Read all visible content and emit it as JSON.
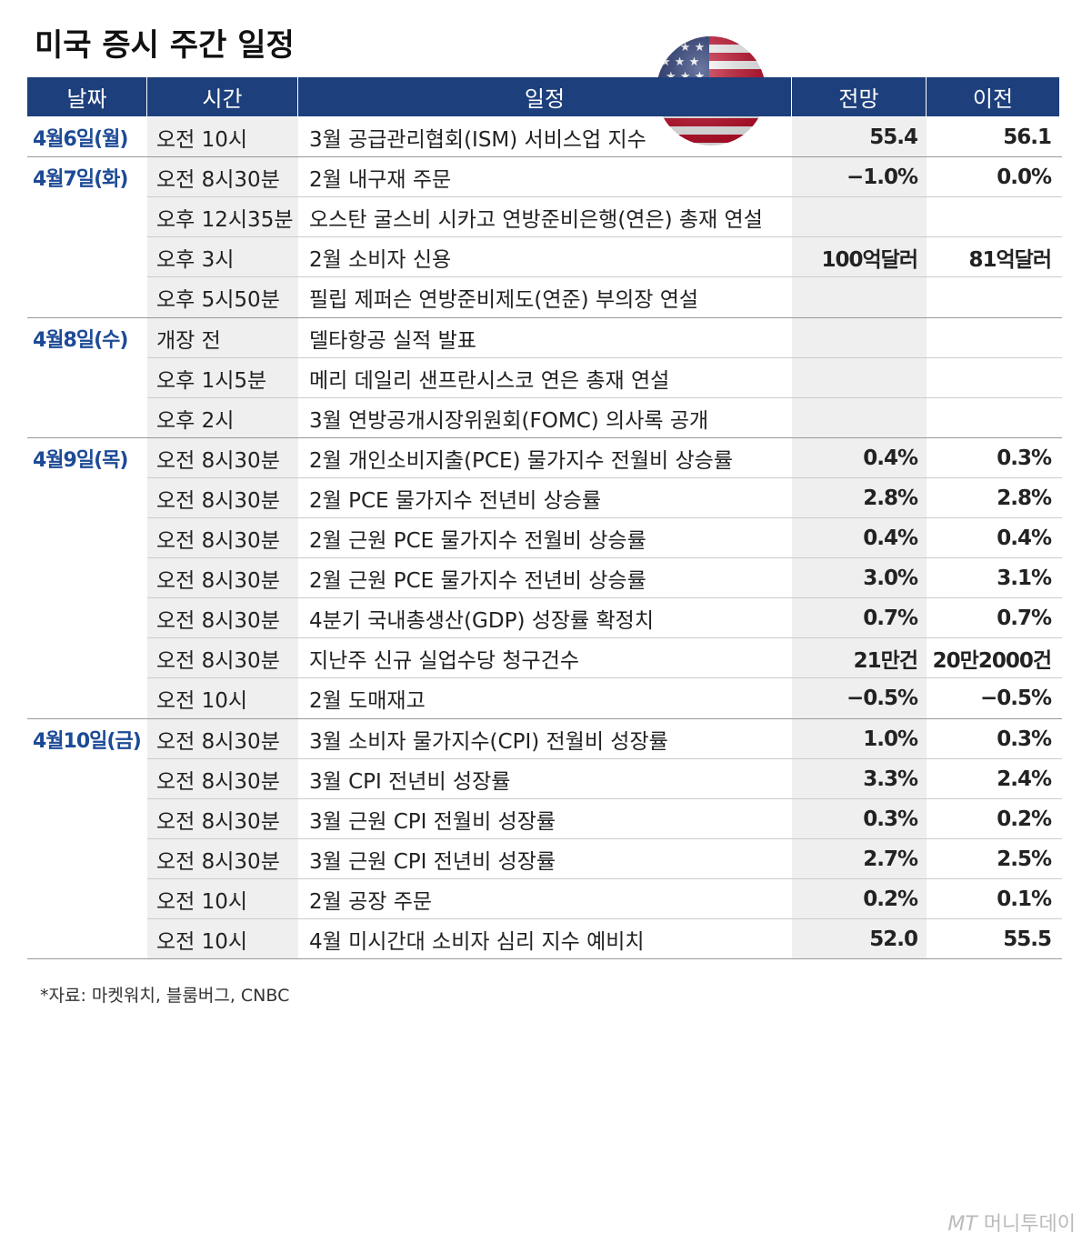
{
  "header": {
    "title": "미국 증시 주간 일정"
  },
  "table": {
    "columns": [
      "날짜",
      "시간",
      "일정",
      "전망",
      "이전"
    ],
    "groups": [
      {
        "date": "4월6일(월)",
        "items": [
          {
            "time": "오전 10시",
            "event": "3월 공급관리협회(ISM) 서비스업 지수",
            "forecast": "55.4",
            "previous": "56.1"
          }
        ]
      },
      {
        "date": "4월7일(화)",
        "items": [
          {
            "time": "오전 8시30분",
            "event": "2월 내구재 주문",
            "forecast": "−1.0%",
            "previous": "0.0%"
          },
          {
            "time": "오후 12시35분",
            "event": "오스탄 굴스비 시카고 연방준비은행(연은) 총재 연설"
          },
          {
            "time": "오후 3시",
            "event": "2월 소비자 신용",
            "forecast": "100억달러",
            "previous": "81억달러"
          },
          {
            "time": "오후 5시50분",
            "event": "필립 제퍼슨 연방준비제도(연준) 부의장 연설"
          }
        ]
      },
      {
        "date": "4월8일(수)",
        "items": [
          {
            "time": "개장 전",
            "event": "델타항공 실적 발표"
          },
          {
            "time": "오후 1시5분",
            "event": "메리 데일리 샌프란시스코 연은 총재 연설"
          },
          {
            "time": "오후 2시",
            "event": "3월 연방공개시장위원회(FOMC) 의사록 공개"
          }
        ]
      },
      {
        "date": "4월9일(목)",
        "items": [
          {
            "time": "오전 8시30분",
            "event": "2월 개인소비지출(PCE) 물가지수 전월비 상승률",
            "forecast": "0.4%",
            "previous": "0.3%"
          },
          {
            "time": "오전 8시30분",
            "event": "2월 PCE 물가지수 전년비 상승률",
            "forecast": "2.8%",
            "previous": "2.8%"
          },
          {
            "time": "오전 8시30분",
            "event": "2월 근원 PCE 물가지수 전월비 상승률",
            "forecast": "0.4%",
            "previous": "0.4%"
          },
          {
            "time": "오전 8시30분",
            "event": "2월 근원 PCE 물가지수 전년비 상승률",
            "forecast": "3.0%",
            "previous": "3.1%"
          },
          {
            "time": "오전 8시30분",
            "event": "4분기 국내총생산(GDP) 성장률 확정치",
            "forecast": "0.7%",
            "previous": "0.7%"
          },
          {
            "time": "오전 8시30분",
            "event": "지난주 신규 실업수당 청구건수",
            "forecast": "21만건",
            "previous": "20만2000건"
          },
          {
            "time": "오전 10시",
            "event": "2월 도매재고",
            "forecast": "−0.5%",
            "previous": "−0.5%"
          }
        ]
      },
      {
        "date": "4월10일(금)",
        "items": [
          {
            "time": "오전 8시30분",
            "event": "3월 소비자 물가지수(CPI) 전월비 성장률",
            "forecast": "1.0%",
            "previous": "0.3%"
          },
          {
            "time": "오전 8시30분",
            "event": "3월 CPI 전년비 성장률",
            "forecast": "3.3%",
            "previous": "2.4%"
          },
          {
            "time": "오전 8시30분",
            "event": "3월 근원 CPI 전월비 성장률",
            "forecast": "0.3%",
            "previous": "0.2%"
          },
          {
            "time": "오전 8시30분",
            "event": "3월 근원 CPI 전년비 성장률",
            "forecast": "2.7%",
            "previous": "2.5%"
          },
          {
            "time": "오전 10시",
            "event": "2월 공장 주문",
            "forecast": "0.2%",
            "previous": "0.1%"
          },
          {
            "time": "오전 10시",
            "event": "4월 미시간대 소비자 심리 지수 예비치",
            "forecast": "52.0",
            "previous": "55.5"
          }
        ]
      }
    ]
  },
  "footer": {
    "source": "*자료: 마켓워치, 블룸버그, CNBC",
    "watermark_logo": "MT",
    "watermark": "머니투데이"
  }
}
